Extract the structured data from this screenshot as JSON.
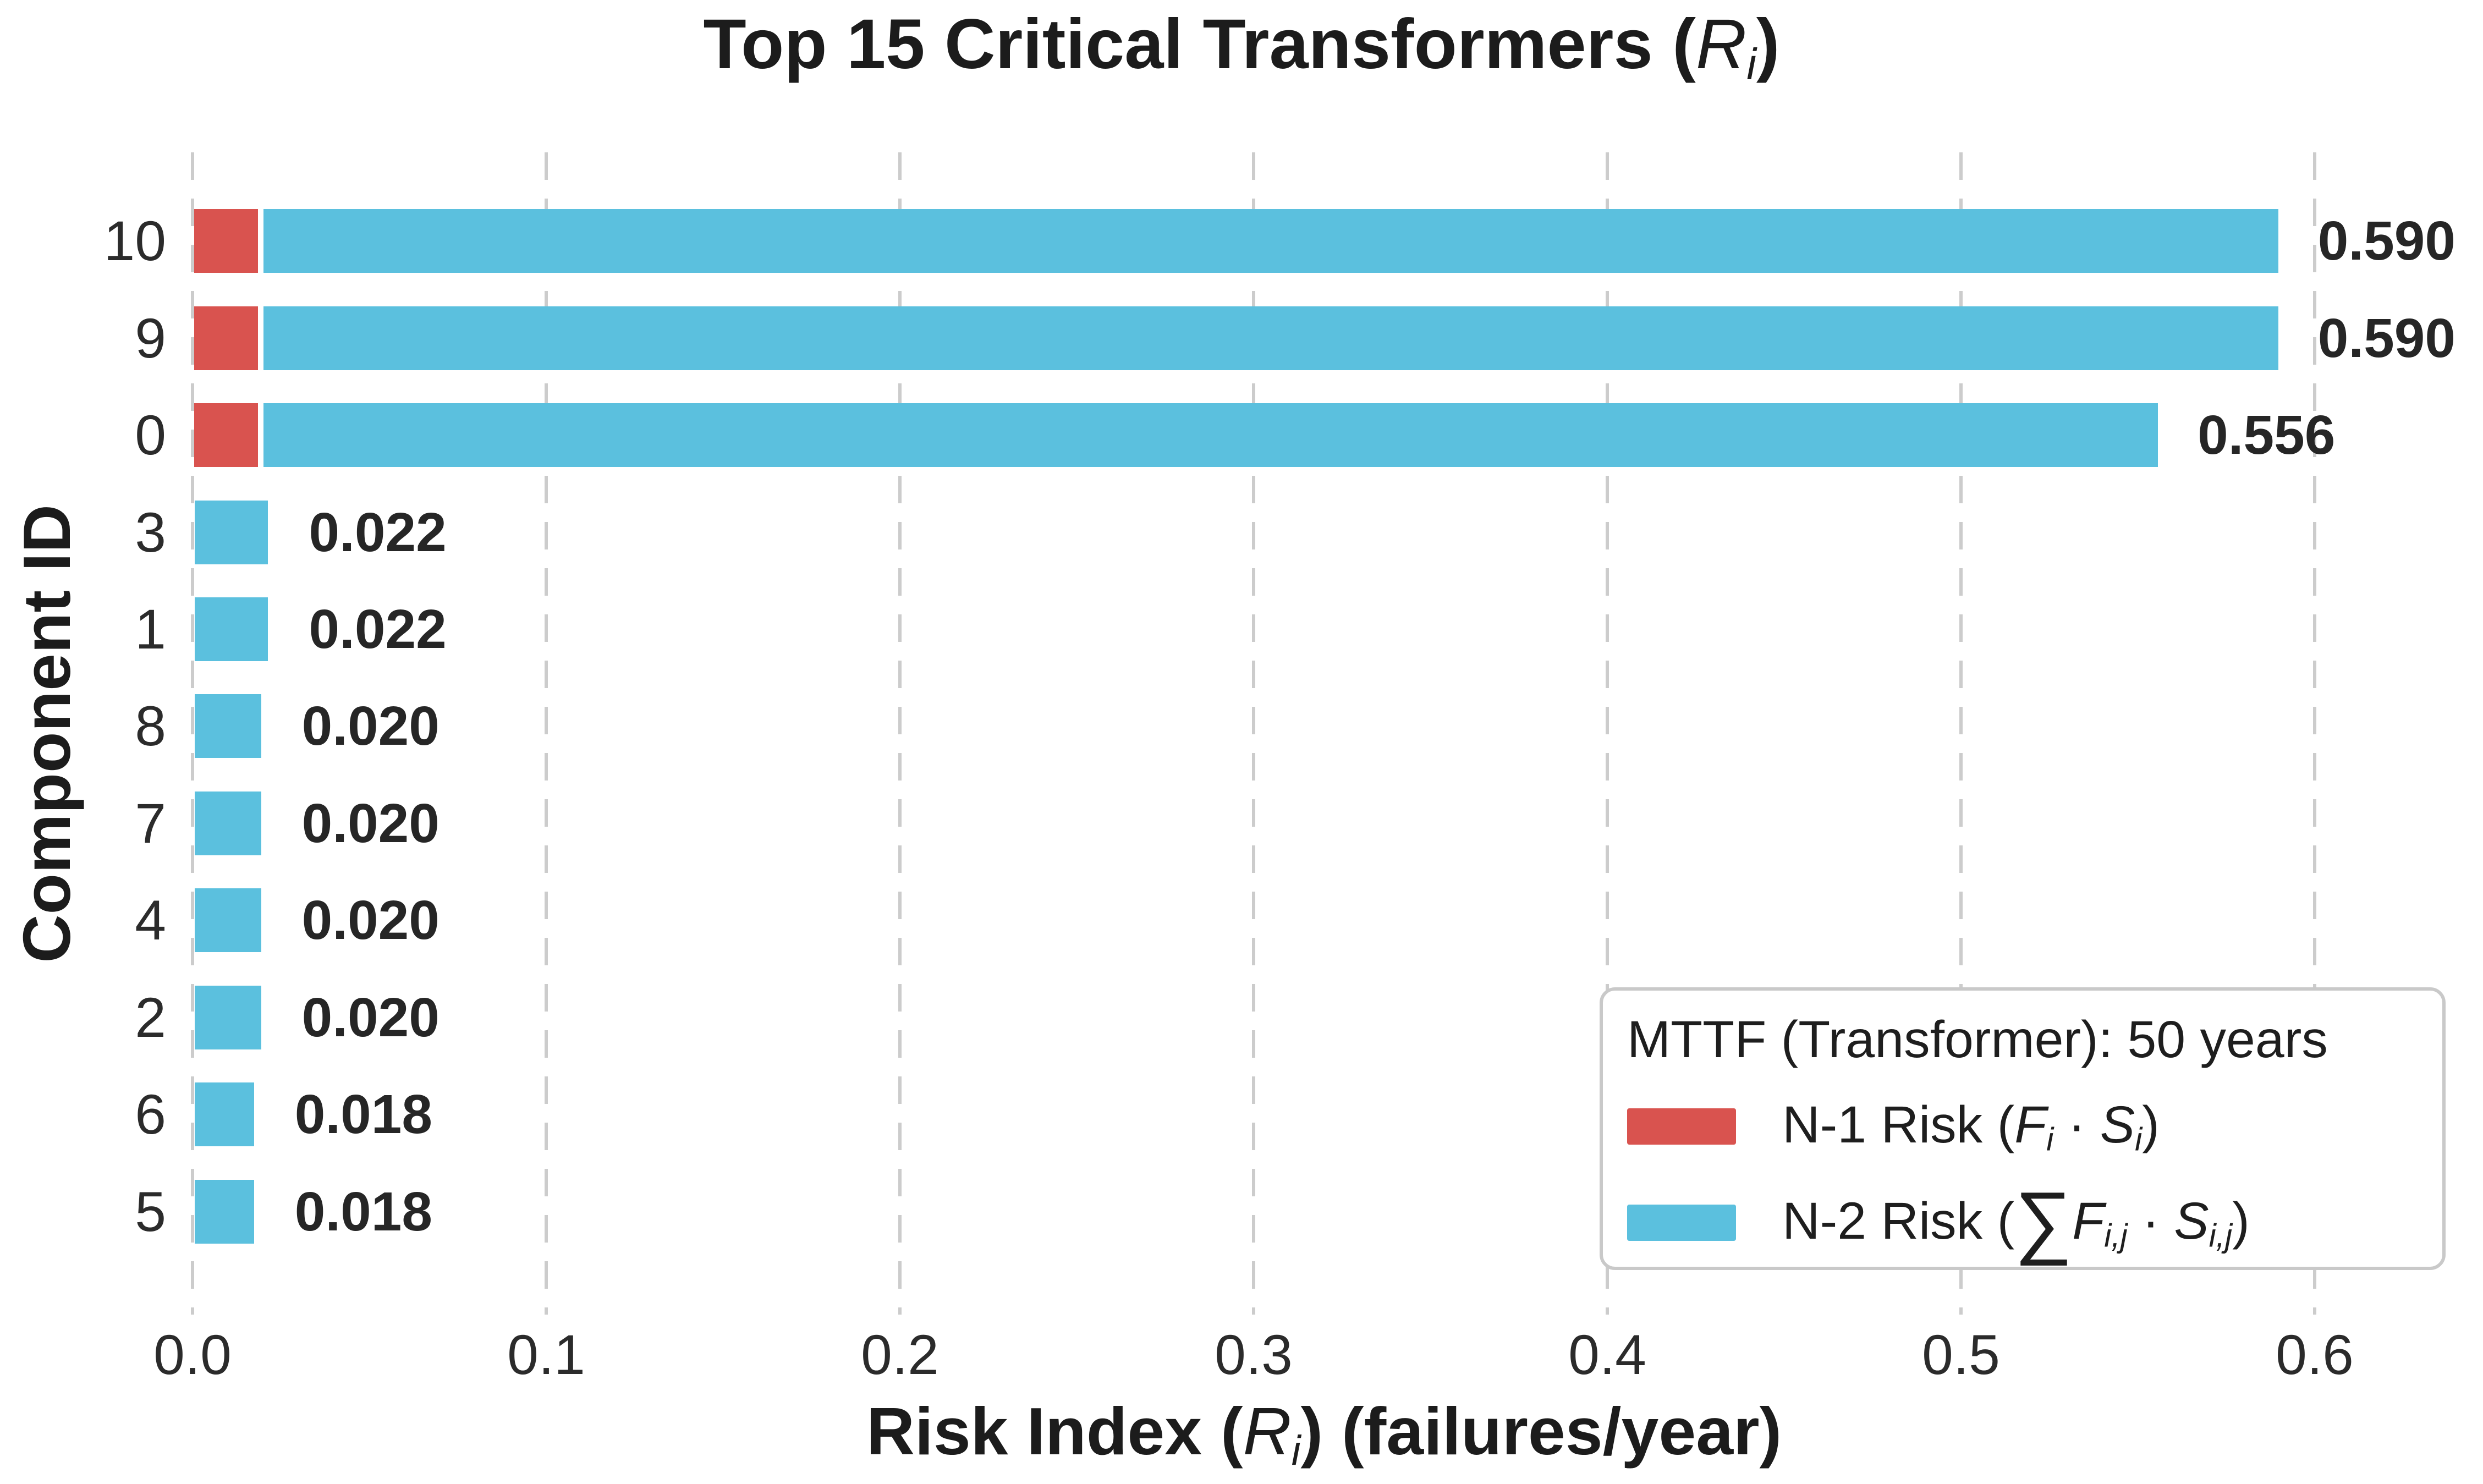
{
  "figure": {
    "title": {
      "prefix": "Top 15 Critical Transformers (",
      "symbol": "R",
      "subscript": "i",
      "suffix": ")"
    },
    "xlabel": {
      "prefix": "Risk Index (",
      "symbol": "R",
      "subscript": "i",
      "suffix": ") (failures/year)"
    },
    "ylabel": "Component ID"
  },
  "chart_data": {
    "type": "bar",
    "orientation": "horizontal",
    "stacked": true,
    "title": "Top 15 Critical Transformers (R_i)",
    "xlabel": "Risk Index (R_i) (failures/year)",
    "ylabel": "Component ID",
    "categories": [
      "10",
      "9",
      "0",
      "3",
      "1",
      "8",
      "7",
      "4",
      "2",
      "6",
      "5"
    ],
    "series": [
      {
        "name": "N-1 Risk (F_i · S_i)",
        "color": "#d9534f",
        "values": [
          0.02,
          0.02,
          0.02,
          0,
          0,
          0,
          0,
          0,
          0,
          0,
          0
        ]
      },
      {
        "name": "N-2 Risk (sum F_i,j · S_i,j)",
        "color": "#5bc0de",
        "values": [
          0.57,
          0.57,
          0.536,
          0.022,
          0.022,
          0.02,
          0.02,
          0.02,
          0.02,
          0.018,
          0.018
        ]
      }
    ],
    "totals": [
      0.59,
      0.59,
      0.556,
      0.022,
      0.022,
      0.02,
      0.02,
      0.02,
      0.02,
      0.018,
      0.018
    ],
    "bar_labels": [
      "0.590",
      "0.590",
      "0.556",
      "0.022",
      "0.022",
      "0.020",
      "0.020",
      "0.020",
      "0.020",
      "0.018",
      "0.018"
    ],
    "xticks": [
      0.0,
      0.1,
      0.2,
      0.3,
      0.4,
      0.5,
      0.6
    ],
    "xtick_labels": [
      "0.0",
      "0.1",
      "0.2",
      "0.3",
      "0.4",
      "0.5",
      "0.6"
    ],
    "xlim": [
      0,
      0.64
    ],
    "grid": "vertical-dashed",
    "legend_position": "lower right"
  },
  "legend": {
    "title": "MTTF (Transformer): 50 years",
    "entries": [
      {
        "swatch_color": "#d9534f",
        "prefix": "N-1 Risk (",
        "f": "F",
        "f_sub": "i",
        "dot": " · ",
        "s": "S",
        "s_sub": "i",
        "suffix": ")"
      },
      {
        "swatch_color": "#5bc0de",
        "prefix": "N-2 Risk (",
        "sum": "∑",
        "f": "F",
        "f_sub": "i,j",
        "dot": " · ",
        "s": "S",
        "s_sub": "i,j",
        "suffix": ")"
      }
    ]
  },
  "colors": {
    "n1_red": "#d9534f",
    "n2_blue": "#5bc0de",
    "gridline": "#cccccc",
    "text_dark": "#1c1c1c",
    "tick_text": "#2b2b2b",
    "legend_border": "#c9c9c9",
    "background": "#ffffff"
  }
}
